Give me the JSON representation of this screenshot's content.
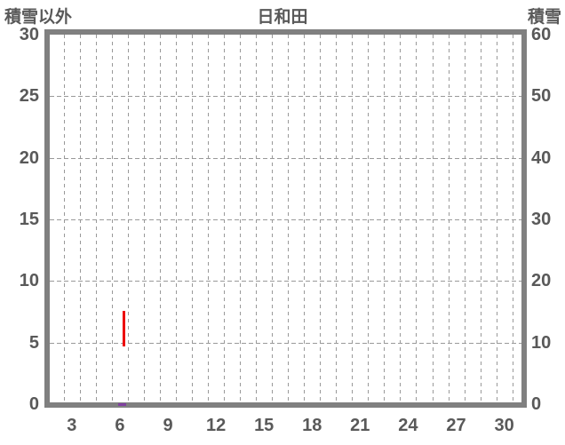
{
  "chart_data": {
    "type": "line",
    "title": "日和田",
    "left_axis": {
      "label": "積雪以外",
      "min": 0,
      "max": 30,
      "ticks": [
        "0",
        "5",
        "10",
        "15",
        "20",
        "25",
        "30"
      ]
    },
    "right_axis": {
      "label": "積雪",
      "min": 0,
      "max": 60,
      "ticks": [
        "0",
        "10",
        "20",
        "30",
        "40",
        "50",
        "60"
      ]
    },
    "x_axis": {
      "tick_labels": [
        "3",
        "6",
        "9",
        "12",
        "15",
        "18",
        "21",
        "24",
        "27",
        "30"
      ],
      "range_days": [
        1.6,
        31.5
      ],
      "gridline_boundaries_start": 2.5,
      "gridline_boundaries_end": 30.5
    },
    "grid": {
      "horizontal_values": [
        5,
        10,
        15,
        20,
        25
      ],
      "style": "dashed",
      "color": "#999999"
    },
    "series": [
      {
        "name": "積雪以外",
        "semantic": "non-snow-series",
        "color": "#ec0000",
        "axis": "left",
        "points": [
          [
            6.25,
            7.6
          ],
          [
            6.3,
            4.7
          ]
        ]
      },
      {
        "name": "積雪",
        "semantic": "snow-depth-series",
        "color": "#8040a0",
        "axis": "right",
        "points": [
          [
            5.9,
            0
          ],
          [
            6.4,
            0
          ]
        ]
      }
    ],
    "layout": {
      "legend": "none",
      "background": "#ffffff",
      "border_color": "#808080",
      "text_color": "#595959"
    }
  }
}
